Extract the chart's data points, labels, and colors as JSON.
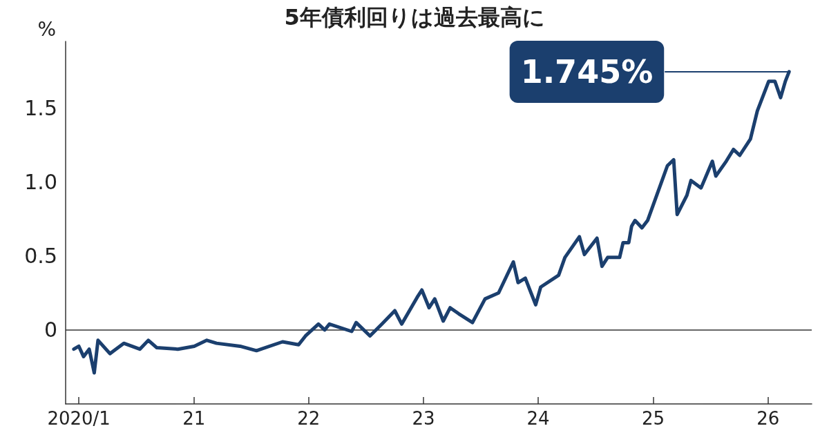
{
  "chart_data": {
    "type": "line",
    "title": "5年債利回りは過去最高に",
    "ylabel": "%",
    "x": [
      "2019-12-16",
      "2020-01-01",
      "2020-01-16",
      "2020-02-03",
      "2020-02-19",
      "2020-03-02",
      "2020-04-09",
      "2020-05-23",
      "2020-07-13",
      "2020-08-09",
      "2020-09-05",
      "2020-11-11",
      "2021-01-02",
      "2021-02-11",
      "2021-03-14",
      "2021-05-28",
      "2021-07-19",
      "2021-10-10",
      "2021-11-30",
      "2021-12-22",
      "2022-02-01",
      "2022-02-21",
      "2022-03-08",
      "2022-05-18",
      "2022-06-01",
      "2022-07-15",
      "2022-08-22",
      "2022-10-02",
      "2022-10-24",
      "2022-12-12",
      "2022-12-27",
      "2023-01-19",
      "2023-02-06",
      "2023-03-05",
      "2023-03-27",
      "2023-04-23",
      "2023-06-06",
      "2023-07-16",
      "2023-08-28",
      "2023-10-14",
      "2023-10-29",
      "2023-11-21",
      "2023-12-24",
      "2024-01-09",
      "2024-03-06",
      "2024-03-26",
      "2024-05-11",
      "2024-05-27",
      "2024-07-06",
      "2024-07-22",
      "2024-08-09",
      "2024-09-16",
      "2024-09-27",
      "2024-10-15",
      "2024-10-24",
      "2024-11-04",
      "2024-11-26",
      "2024-12-14",
      "2025-02-15",
      "2025-03-07",
      "2025-03-18",
      "2025-04-18",
      "2025-05-01",
      "2025-06-02",
      "2025-07-08",
      "2025-07-19",
      "2025-08-21",
      "2025-09-13",
      "2025-10-03",
      "2025-11-06",
      "2025-11-28",
      "2026-01-03",
      "2026-01-23",
      "2026-02-10",
      "2026-02-25",
      "2026-03-09"
    ],
    "series": [
      {
        "color": "#1b3f6e",
        "values": [
          -0.13,
          -0.11,
          -0.18,
          -0.13,
          -0.29,
          -0.07,
          -0.16,
          -0.09,
          -0.13,
          -0.07,
          -0.12,
          -0.13,
          -0.11,
          -0.07,
          -0.09,
          -0.11,
          -0.14,
          -0.08,
          -0.1,
          -0.04,
          0.04,
          0,
          0.04,
          -0.01,
          0.05,
          -0.04,
          0.04,
          0.13,
          0.04,
          0.22,
          0.27,
          0.15,
          0.21,
          0.06,
          0.15,
          0.11,
          0.05,
          0.21,
          0.25,
          0.46,
          0.32,
          0.35,
          0.17,
          0.29,
          0.37,
          0.49,
          0.63,
          0.51,
          0.62,
          0.43,
          0.49,
          0.49,
          0.59,
          0.59,
          0.7,
          0.74,
          0.69,
          0.74,
          1.11,
          1.15,
          0.78,
          0.91,
          1.01,
          0.96,
          1.14,
          1.04,
          1.14,
          1.22,
          1.18,
          1.29,
          1.48,
          1.68,
          1.68,
          1.57,
          1.68,
          1.745
        ]
      }
    ],
    "xlim": [
      "2019-11-20",
      "2026-05-20"
    ],
    "xticks": [
      {
        "value": "2020-01-01",
        "label": "2020/1"
      },
      {
        "value": "2021-01-01",
        "label": "21"
      },
      {
        "value": "2022-01-01",
        "label": "22"
      },
      {
        "value": "2023-01-01",
        "label": "23"
      },
      {
        "value": "2024-01-01",
        "label": "24"
      },
      {
        "value": "2025-01-01",
        "label": "25"
      },
      {
        "value": "2026-01-01",
        "label": "26"
      }
    ],
    "ylim": [
      -0.5,
      1.95
    ],
    "yticks": [
      0,
      0.5,
      {
        "value": 1,
        "label": "1.0"
      },
      1.5
    ],
    "ref_lines": [
      {
        "axis": "y",
        "value": 0,
        "color": "#333333"
      }
    ],
    "annotations": [
      "1.745%"
    ],
    "grid": false,
    "marker": "none",
    "line_style": "solid"
  }
}
